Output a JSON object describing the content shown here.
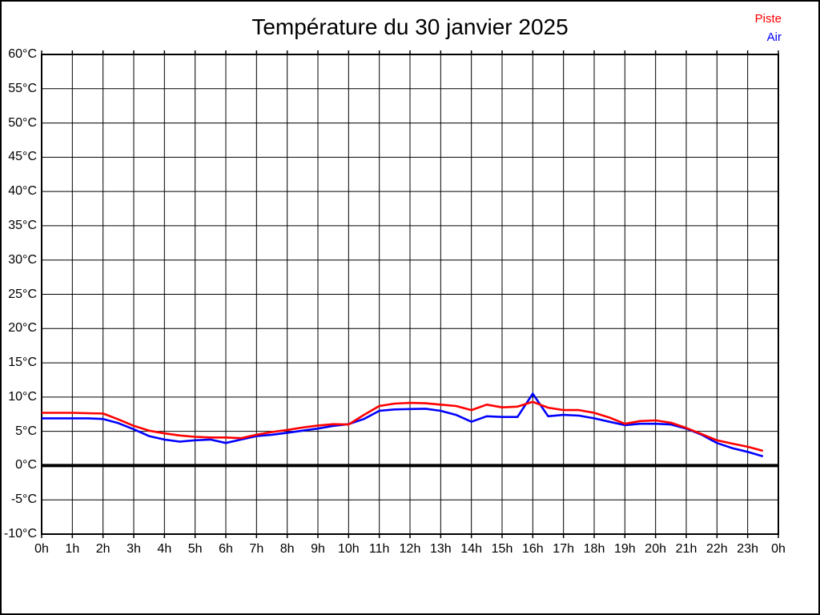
{
  "title": "Température du 30 janvier 2025",
  "legend": [
    {
      "label": "Piste",
      "color": "#ff0000"
    },
    {
      "label": "Air",
      "color": "#0000ff"
    }
  ],
  "chart_data": {
    "type": "line",
    "title": "Température du 30 janvier 2025",
    "xlabel": "",
    "ylabel": "",
    "xlim": [
      0,
      24
    ],
    "ylim": [
      -10,
      60
    ],
    "grid": true,
    "x_tick_step_hours": 1,
    "y_tick_step_degrees": 5,
    "x_tick_labels": [
      "0h",
      "1h",
      "2h",
      "3h",
      "4h",
      "5h",
      "6h",
      "7h",
      "8h",
      "9h",
      "10h",
      "11h",
      "12h",
      "13h",
      "14h",
      "15h",
      "16h",
      "17h",
      "18h",
      "19h",
      "20h",
      "21h",
      "22h",
      "23h",
      "0h"
    ],
    "y_tick_labels": [
      "60°C",
      "55°C",
      "50°C",
      "45°C",
      "40°C",
      "35°C",
      "30°C",
      "25°C",
      "20°C",
      "15°C",
      "10°C",
      "5°C",
      "0°C",
      "-5°C",
      "-10°C"
    ],
    "zero_line": {
      "value": 0,
      "color": "#000000",
      "thick": true
    },
    "x_hours": [
      0,
      0.5,
      1,
      1.5,
      2,
      2.5,
      3,
      3.5,
      4,
      4.5,
      5,
      5.5,
      6,
      6.5,
      7,
      7.5,
      8,
      8.5,
      9,
      9.5,
      10,
      10.5,
      11,
      11.5,
      12,
      12.5,
      13,
      13.5,
      14,
      14.5,
      15,
      15.5,
      16,
      16.5,
      17,
      17.5,
      18,
      18.5,
      19,
      19.5,
      20,
      20.5,
      21,
      21.5,
      22,
      22.5,
      23,
      23.5
    ],
    "series": [
      {
        "name": "Piste",
        "color": "#ff0000",
        "values": [
          7.7,
          7.7,
          7.7,
          7.65,
          7.6,
          6.75,
          5.8,
          5.1,
          4.7,
          4.4,
          4.2,
          4.1,
          4.1,
          4.0,
          4.5,
          4.9,
          5.2,
          5.55,
          5.85,
          6.05,
          6.0,
          7.4,
          8.7,
          9.05,
          9.15,
          9.1,
          8.9,
          8.7,
          8.1,
          8.9,
          8.5,
          8.6,
          9.3,
          8.45,
          8.1,
          8.1,
          7.7,
          7.0,
          6.1,
          6.5,
          6.6,
          6.25,
          5.5,
          4.6,
          3.7,
          3.2,
          2.75,
          2.15
        ]
      },
      {
        "name": "Air",
        "color": "#0000ff",
        "values": [
          6.9,
          6.9,
          6.9,
          6.9,
          6.8,
          6.2,
          5.3,
          4.3,
          3.8,
          3.5,
          3.7,
          3.8,
          3.3,
          3.8,
          4.3,
          4.5,
          4.8,
          5.1,
          5.4,
          5.8,
          6.05,
          6.8,
          8.0,
          8.2,
          8.25,
          8.3,
          8.0,
          7.4,
          6.4,
          7.2,
          7.1,
          7.1,
          10.5,
          7.2,
          7.4,
          7.3,
          6.9,
          6.4,
          5.9,
          6.1,
          6.1,
          6.0,
          5.4,
          4.5,
          3.3,
          2.55,
          2.0,
          1.35
        ]
      }
    ]
  }
}
